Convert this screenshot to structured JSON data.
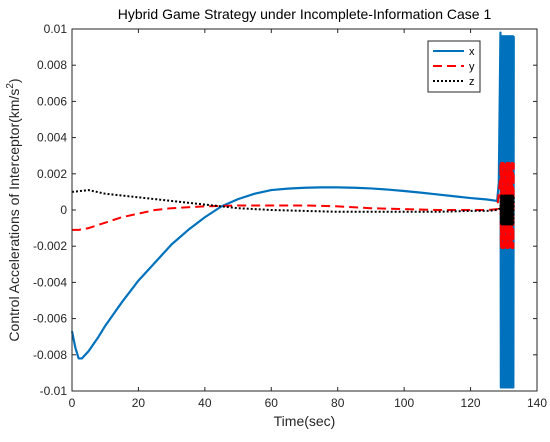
{
  "chart_data": {
    "type": "line",
    "title": "Hybrid Game Strategy under Incomplete-Information Case 1",
    "xlabel": "Time(sec)",
    "ylabel_main": "Control Accelerations of Interceptor(km/s",
    "ylabel_sup": "2",
    "ylabel_close": ")",
    "xlim": [
      0,
      140
    ],
    "ylim": [
      -0.01,
      0.01
    ],
    "xticks": [
      0,
      20,
      40,
      60,
      80,
      100,
      120,
      140
    ],
    "yticks": [
      -0.01,
      -0.008,
      -0.006,
      -0.004,
      -0.002,
      0,
      0.002,
      0.004,
      0.006,
      0.008,
      0.01
    ],
    "xtick_labels": [
      "0",
      "20",
      "40",
      "60",
      "80",
      "100",
      "120",
      "140"
    ],
    "ytick_labels": [
      "-0.01",
      "-0.008",
      "-0.006",
      "-0.004",
      "-0.002",
      "0",
      "0.002",
      "0.004",
      "0.006",
      "0.008",
      "0.01"
    ],
    "grid": false,
    "legend_position": "top-right",
    "series": [
      {
        "name": "x",
        "color": "#0072BD",
        "style": "solid",
        "points": [
          [
            0,
            -0.0067
          ],
          [
            1,
            -0.0076
          ],
          [
            2,
            -0.0082
          ],
          [
            3,
            -0.0082
          ],
          [
            5,
            -0.0078
          ],
          [
            8,
            -0.007
          ],
          [
            10,
            -0.0064
          ],
          [
            15,
            -0.0051
          ],
          [
            20,
            -0.0039
          ],
          [
            25,
            -0.0029
          ],
          [
            30,
            -0.0019
          ],
          [
            35,
            -0.0011
          ],
          [
            40,
            -0.0004
          ],
          [
            45,
            0.0002
          ],
          [
            50,
            0.0006
          ],
          [
            55,
            0.0009
          ],
          [
            60,
            0.0011
          ],
          [
            65,
            0.00118
          ],
          [
            70,
            0.00123
          ],
          [
            75,
            0.00125
          ],
          [
            80,
            0.00125
          ],
          [
            85,
            0.00123
          ],
          [
            90,
            0.00119
          ],
          [
            95,
            0.00113
          ],
          [
            100,
            0.00105
          ],
          [
            105,
            0.00096
          ],
          [
            110,
            0.00086
          ],
          [
            115,
            0.00076
          ],
          [
            120,
            0.00066
          ],
          [
            125,
            0.00058
          ],
          [
            128,
            0.0005
          ],
          [
            128.5,
            0.0015
          ],
          [
            129,
            0.0098
          ]
        ],
        "oscillation": {
          "x_start": 129,
          "x_end": 133,
          "y_min": -0.0098,
          "y_max": 0.0096
        }
      },
      {
        "name": "y",
        "color": "#FF0000",
        "style": "dashed",
        "points": [
          [
            0,
            -0.0011
          ],
          [
            2,
            -0.0011
          ],
          [
            5,
            -0.001
          ],
          [
            10,
            -0.0007
          ],
          [
            15,
            -0.0004
          ],
          [
            20,
            -0.0002
          ],
          [
            25,
            0
          ],
          [
            30,
            0.0001
          ],
          [
            35,
            0.00015
          ],
          [
            40,
            0.0002
          ],
          [
            50,
            0.00025
          ],
          [
            60,
            0.00025
          ],
          [
            70,
            0.00025
          ],
          [
            80,
            0.0002
          ],
          [
            90,
            0.0001
          ],
          [
            100,
            5e-05
          ],
          [
            110,
            0
          ],
          [
            120,
            0
          ],
          [
            125,
            0
          ],
          [
            128,
            5e-05
          ],
          [
            129,
            0.0019
          ]
        ],
        "oscillation": {
          "x_start": 129,
          "x_end": 133,
          "y_min": -0.0021,
          "y_max": 0.0026
        }
      },
      {
        "name": "z",
        "color": "#000000",
        "style": "dotted",
        "points": [
          [
            0,
            0.001
          ],
          [
            5,
            0.0011
          ],
          [
            10,
            0.0009
          ],
          [
            15,
            0.0008
          ],
          [
            20,
            0.0007
          ],
          [
            25,
            0.0006
          ],
          [
            30,
            0.0005
          ],
          [
            35,
            0.0004
          ],
          [
            40,
            0.0003
          ],
          [
            45,
            0.0002
          ],
          [
            50,
            0.0001
          ],
          [
            60,
            0
          ],
          [
            70,
            -5e-05
          ],
          [
            80,
            -0.0001
          ],
          [
            90,
            -0.0001
          ],
          [
            100,
            -0.0001
          ],
          [
            110,
            -0.0001
          ],
          [
            120,
            -5e-05
          ],
          [
            125,
            -5e-05
          ],
          [
            128,
            0
          ],
          [
            129,
            0.0001
          ]
        ],
        "oscillation": {
          "x_start": 129,
          "x_end": 133,
          "y_min": -0.0008,
          "y_max": 0.0008
        }
      }
    ]
  }
}
